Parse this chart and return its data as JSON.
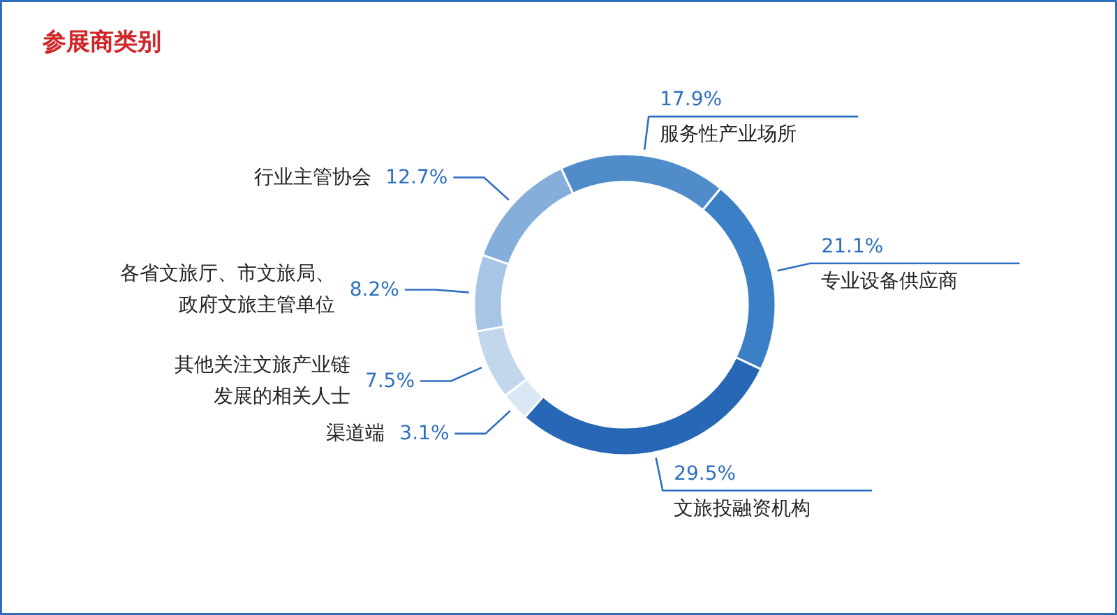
{
  "chart_data": {
    "type": "donut",
    "title": "参展商类别",
    "categories": [
      "服务性产业场所",
      "专业设备供应商",
      "文旅投融资机构",
      "渠道端",
      "其他关注文旅产业链发展的相关人士",
      "各省文旅厅、市文旅局、政府文旅主管单位",
      "行业主管协会"
    ],
    "values": [
      17.9,
      21.1,
      29.5,
      3.1,
      7.5,
      8.2,
      12.7
    ],
    "colors": [
      "#4f8cc9",
      "#3b7fc6",
      "#2767b5",
      "#dbe7f4",
      "#c2d6ec",
      "#a8c5e6",
      "#86aedb"
    ],
    "value_labels": [
      "17.9%",
      "21.1%",
      "29.5%",
      "3.1%",
      "7.5%",
      "8.2%",
      "12.7%"
    ]
  }
}
